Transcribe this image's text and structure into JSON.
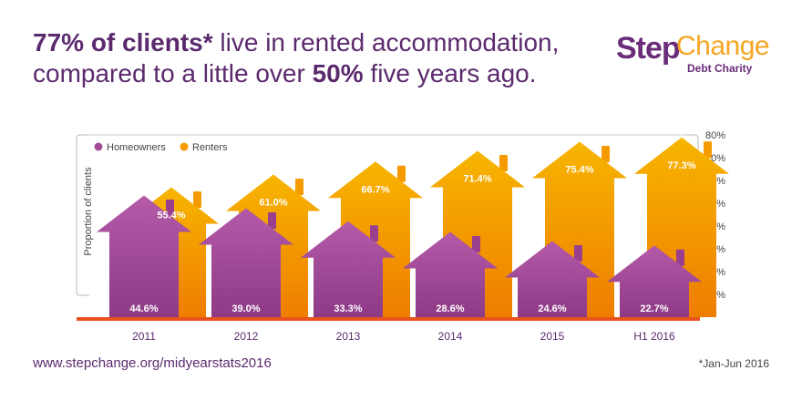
{
  "headline": {
    "part1_bold": "77% of clients*",
    "part2": " live in rented accommodation,",
    "part3": "compared to a little over ",
    "part4_bold": "50%",
    "part5": " five years ago."
  },
  "logo": {
    "step": "Step",
    "change": "Change",
    "sub": "Debt Charity"
  },
  "footer": {
    "url": "www.stepchange.org/midyearstats2016",
    "note": "*Jan-Jun 2016"
  },
  "colors": {
    "homeowners": "#a64b9a",
    "renters": "#f59b00",
    "baseline": "#e8521c",
    "title": "#5b2a6e"
  },
  "chart_data": {
    "type": "bar",
    "categories": [
      "2011",
      "2012",
      "2013",
      "2014",
      "2015",
      "H1 2016"
    ],
    "series": [
      {
        "name": "Homeowners",
        "values": [
          44.6,
          39.0,
          33.3,
          28.6,
          24.6,
          22.7
        ],
        "labels": [
          "44.6%",
          "39.0%",
          "33.3%",
          "28.6%",
          "24.6%",
          "22.7%"
        ]
      },
      {
        "name": "Renters",
        "values": [
          55.4,
          61.0,
          66.7,
          71.4,
          75.4,
          77.3
        ],
        "labels": [
          "55.4%",
          "61.0%",
          "66.7%",
          "71.4%",
          "75.4%",
          "77.3%"
        ]
      }
    ],
    "ylabel": "Proportion of clients",
    "ylim": [
      0,
      80
    ],
    "yticks": [
      "10%",
      "20%",
      "30%",
      "40%",
      "50%",
      "60%",
      "70%",
      "80%"
    ],
    "legend": "top-left"
  }
}
